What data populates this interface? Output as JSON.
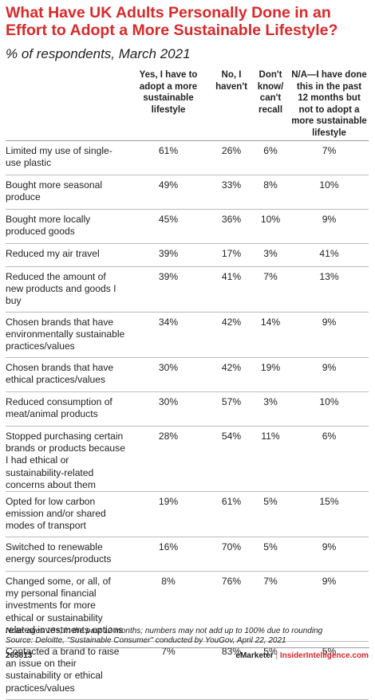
{
  "chart_data": {
    "type": "table",
    "title": "What Have UK Adults Personally Done in an Effort to Adopt a More Sustainable Lifestyle?",
    "subtitle": "% of respondents, March 2021",
    "columns": [
      "Yes, I have to adopt a more sustainable lifestyle",
      "No, I haven't",
      "Don't know/ can't recall",
      "N/A—I have done this in the past 12 months but not to adopt a more sustainable lifestyle"
    ],
    "rows": [
      {
        "label": "Limited my use of single-use plastic",
        "values": [
          "61%",
          "26%",
          "6%",
          "7%"
        ]
      },
      {
        "label": "Bought more seasonal produce",
        "values": [
          "49%",
          "33%",
          "8%",
          "10%"
        ]
      },
      {
        "label": "Bought more locally produced goods",
        "values": [
          "45%",
          "36%",
          "10%",
          "9%"
        ]
      },
      {
        "label": "Reduced my air travel",
        "values": [
          "39%",
          "17%",
          "3%",
          "41%"
        ]
      },
      {
        "label": "Reduced the amount of new products and goods I buy",
        "values": [
          "39%",
          "41%",
          "7%",
          "13%"
        ]
      },
      {
        "label": "Chosen brands that have environmentally sustainable practices/values",
        "values": [
          "34%",
          "42%",
          "14%",
          "9%"
        ]
      },
      {
        "label": "Chosen brands that have ethical practices/values",
        "values": [
          "30%",
          "42%",
          "19%",
          "9%"
        ]
      },
      {
        "label": "Reduced consumption of meat/animal products",
        "values": [
          "30%",
          "57%",
          "3%",
          "10%"
        ]
      },
      {
        "label": "Stopped purchasing certain brands or products because I had ethical or sustainability-related concerns about them",
        "values": [
          "28%",
          "54%",
          "11%",
          "6%"
        ]
      },
      {
        "label": "Opted for low carbon emission and/or shared modes of transport",
        "values": [
          "19%",
          "61%",
          "5%",
          "15%"
        ]
      },
      {
        "label": "Switched to renewable energy sources/products",
        "values": [
          "16%",
          "70%",
          "5%",
          "9%"
        ]
      },
      {
        "label": "Changed some, or all, of my personal financial investments for more ethical or sustainability related investments options",
        "values": [
          "8%",
          "76%",
          "7%",
          "9%"
        ]
      },
      {
        "label": "Contacted a brand to raise an issue on their sustainability or ethical practices/values",
        "values": [
          "7%",
          "83%",
          "5%",
          "5%"
        ]
      }
    ]
  },
  "note": "Note: ages 18+; in the past 12 months; numbers may not add up to 100% due to rounding",
  "source": "Source: Deloitte, \"Sustainable Consumer\" conducted by YouGov, April 22, 2021",
  "footer": {
    "id": "265813",
    "brand": "eMarketer",
    "separator": "|",
    "site": "InsiderIntelligence.com"
  }
}
